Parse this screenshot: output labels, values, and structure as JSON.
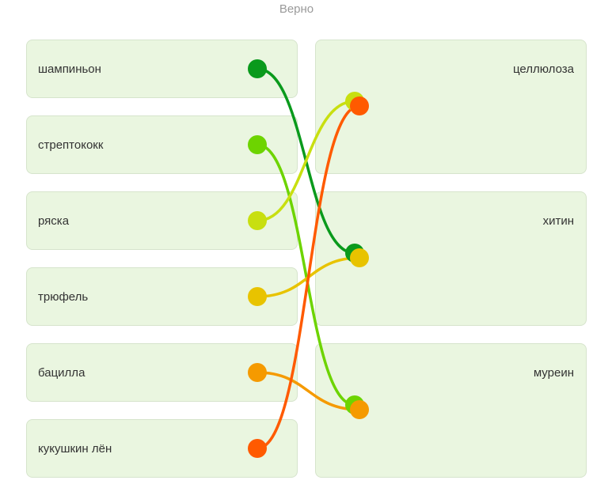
{
  "status": "Верно",
  "left_items": [
    {
      "label": "шампиньон",
      "color": "#0a9a1c"
    },
    {
      "label": "стрептококк",
      "color": "#6dd400"
    },
    {
      "label": "ряска",
      "color": "#c8df10"
    },
    {
      "label": "трюфель",
      "color": "#e8c300"
    },
    {
      "label": "бацилла",
      "color": "#f59a00"
    },
    {
      "label": "кукушкин лён",
      "color": "#ff5a00"
    }
  ],
  "right_items": [
    {
      "label": "целлюлоза"
    },
    {
      "label": "хитин"
    },
    {
      "label": "муреин"
    }
  ],
  "connections": [
    {
      "from": 0,
      "to": 1
    },
    {
      "from": 1,
      "to": 2
    },
    {
      "from": 2,
      "to": 0
    },
    {
      "from": 3,
      "to": 1
    },
    {
      "from": 4,
      "to": 2
    },
    {
      "from": 5,
      "to": 0
    }
  ]
}
